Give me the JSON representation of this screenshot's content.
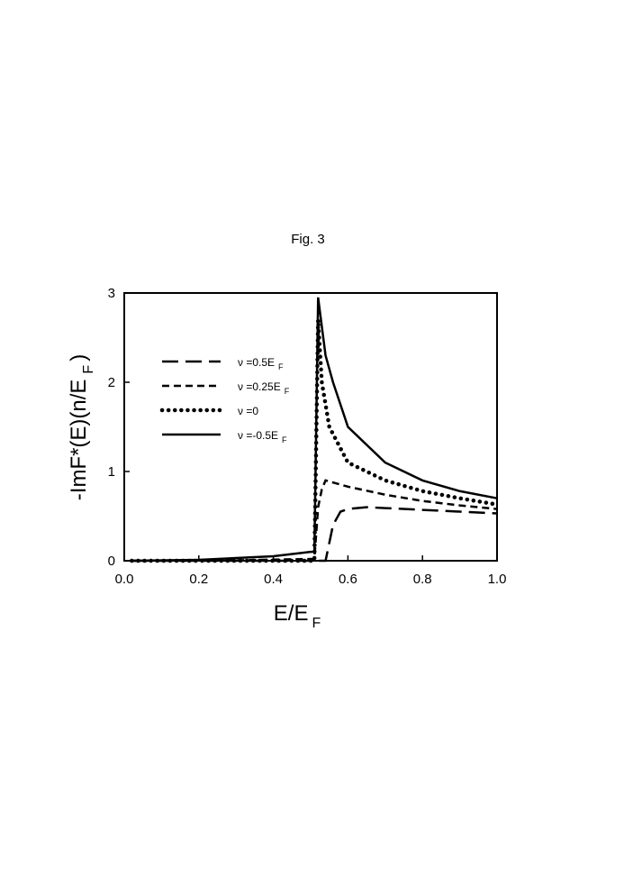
{
  "chart_data": {
    "type": "line",
    "title": "Fig. 3",
    "x_label": "E/E",
    "x_label_sub": "F",
    "y_label": "-ImF*(E)(n/E",
    "y_label_sub": "F",
    "y_label_end": ")",
    "xlim": [
      0,
      1
    ],
    "ylim": [
      0,
      3
    ],
    "xticks": [
      {
        "value": 0,
        "label": "0.0"
      },
      {
        "value": 0.2,
        "label": "0.2"
      },
      {
        "value": 0.4,
        "label": "0.4"
      },
      {
        "value": 0.6,
        "label": "0.6"
      },
      {
        "value": 0.8,
        "label": "0.8"
      },
      {
        "value": 1,
        "label": "1.0"
      }
    ],
    "yticks": [
      0,
      1,
      2,
      3
    ],
    "legend": "upper-left",
    "series": [
      {
        "name": "ν =0.5E",
        "name_sub": "F",
        "color": "#000000",
        "style": "long-dash",
        "x": [
          0.02,
          0.3,
          0.5,
          0.54,
          0.55,
          0.56,
          0.58,
          0.6,
          0.65,
          0.7,
          0.8,
          0.9,
          1.0
        ],
        "values": [
          0,
          0,
          0,
          0,
          0.2,
          0.4,
          0.55,
          0.58,
          0.6,
          0.59,
          0.57,
          0.55,
          0.53
        ]
      },
      {
        "name": "ν =0.25E",
        "name_sub": "F",
        "color": "#000000",
        "style": "short-dash",
        "x": [
          0.02,
          0.3,
          0.5,
          0.51,
          0.52,
          0.53,
          0.54,
          0.6,
          0.7,
          0.8,
          0.9,
          1.0
        ],
        "values": [
          0,
          0.005,
          0.02,
          0.02,
          0.6,
          0.8,
          0.9,
          0.83,
          0.74,
          0.67,
          0.62,
          0.58
        ]
      },
      {
        "name": "ν =0",
        "color": "#000000",
        "style": "dotted",
        "x": [
          0.02,
          0.3,
          0.5,
          0.51,
          0.52,
          0.53,
          0.55,
          0.6,
          0.7,
          0.8,
          0.9,
          1.0
        ],
        "values": [
          0,
          0,
          0,
          0,
          2.7,
          2.0,
          1.5,
          1.1,
          0.9,
          0.78,
          0.7,
          0.63
        ]
      },
      {
        "name": "ν =-0.5E",
        "name_sub": "F",
        "color": "#000000",
        "style": "solid",
        "x": [
          0.02,
          0.2,
          0.4,
          0.5,
          0.51,
          0.52,
          0.54,
          0.56,
          0.6,
          0.7,
          0.8,
          0.9,
          1.0
        ],
        "values": [
          0,
          0.01,
          0.05,
          0.1,
          0.1,
          2.95,
          2.3,
          2.0,
          1.5,
          1.1,
          0.9,
          0.78,
          0.7
        ]
      }
    ]
  }
}
